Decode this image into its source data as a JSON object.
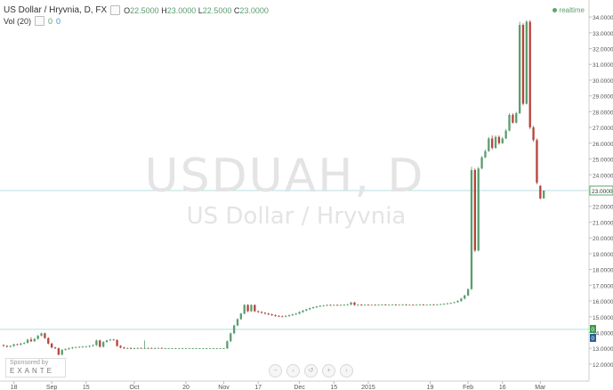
{
  "legend": {
    "title": "US Dollar / Hryvnia, D, FX",
    "box_icon": "square",
    "o_label": "O",
    "o": "22.5000",
    "h_label": "H",
    "h": "23.0000",
    "l_label": "L",
    "l": "22.5000",
    "c_label": "C",
    "c": "23.0000"
  },
  "volume": {
    "label": "Vol (20)",
    "v0": "0",
    "v1": "0"
  },
  "status": {
    "label": "realtime"
  },
  "watermark": {
    "symbol": "USDUAH, D",
    "name": "US Dollar / Hryvnia"
  },
  "sponsor": {
    "label": "Sponsored by",
    "brand": "EXANTE"
  },
  "nav": {
    "zoom_out": "−",
    "scroll_left": "‹",
    "reset": "↺",
    "zoom_in": "+",
    "scroll_right": "›"
  },
  "colors": {
    "up": "#5a9e6f",
    "down": "#b5453b",
    "line": "#b7dde0",
    "last_price": "#5aa86a"
  },
  "chart_data": {
    "type": "candlestick",
    "y_ticks": [
      "34.0000",
      "33.0000",
      "32.0000",
      "31.0000",
      "30.0000",
      "29.0000",
      "28.0000",
      "27.0000",
      "26.0000",
      "25.0000",
      "24.0000",
      "22.0000",
      "21.0000",
      "20.0000",
      "19.0000",
      "18.0000",
      "17.0000",
      "16.0000",
      "15.0000",
      "14.0000",
      "13.0000",
      "12.0000"
    ],
    "ylim": [
      11.6,
      34.4
    ],
    "last_price_label": "23.0000",
    "volume_labels": [
      "0",
      "0"
    ],
    "reference_line": 14.2,
    "x_ticks": [
      {
        "label": "18",
        "x": 3
      },
      {
        "label": "Sep",
        "x": 14
      },
      {
        "label": "15",
        "x": 24
      },
      {
        "label": "Oct",
        "x": 38
      },
      {
        "label": "20",
        "x": 53
      },
      {
        "label": "Nov",
        "x": 64
      },
      {
        "label": "17",
        "x": 74
      },
      {
        "label": "Dec",
        "x": 86
      },
      {
        "label": "15",
        "x": 96
      },
      {
        "label": "2015",
        "x": 106
      },
      {
        "label": "19",
        "x": 124
      },
      {
        "label": "Feb",
        "x": 135
      },
      {
        "label": "16",
        "x": 145
      },
      {
        "label": "Mar",
        "x": 156
      }
    ],
    "x_range": [
      0,
      166
    ],
    "candles": [
      {
        "x": 0,
        "o": 13.2,
        "h": 13.25,
        "l": 13.1,
        "c": 13.15
      },
      {
        "x": 1,
        "o": 13.15,
        "h": 13.2,
        "l": 13.05,
        "c": 13.1
      },
      {
        "x": 2,
        "o": 13.1,
        "h": 13.2,
        "l": 13.05,
        "c": 13.15
      },
      {
        "x": 3,
        "o": 13.15,
        "h": 13.3,
        "l": 13.1,
        "c": 13.25
      },
      {
        "x": 4,
        "o": 13.25,
        "h": 13.3,
        "l": 13.2,
        "c": 13.22
      },
      {
        "x": 5,
        "o": 13.22,
        "h": 13.35,
        "l": 13.2,
        "c": 13.3
      },
      {
        "x": 6,
        "o": 13.3,
        "h": 13.4,
        "l": 13.25,
        "c": 13.35
      },
      {
        "x": 7,
        "o": 13.35,
        "h": 13.6,
        "l": 13.3,
        "c": 13.55
      },
      {
        "x": 8,
        "o": 13.55,
        "h": 13.7,
        "l": 13.4,
        "c": 13.45
      },
      {
        "x": 9,
        "o": 13.45,
        "h": 13.65,
        "l": 13.4,
        "c": 13.6
      },
      {
        "x": 10,
        "o": 13.6,
        "h": 13.85,
        "l": 13.55,
        "c": 13.8
      },
      {
        "x": 11,
        "o": 13.8,
        "h": 14.0,
        "l": 13.75,
        "c": 13.95
      },
      {
        "x": 12,
        "o": 13.95,
        "h": 14.0,
        "l": 13.6,
        "c": 13.65
      },
      {
        "x": 13,
        "o": 13.65,
        "h": 13.7,
        "l": 13.25,
        "c": 13.3
      },
      {
        "x": 14,
        "o": 13.3,
        "h": 13.35,
        "l": 13.0,
        "c": 13.05
      },
      {
        "x": 15,
        "o": 13.05,
        "h": 13.1,
        "l": 12.95,
        "c": 13.0
      },
      {
        "x": 16,
        "o": 13.0,
        "h": 13.05,
        "l": 12.55,
        "c": 12.6
      },
      {
        "x": 17,
        "o": 12.6,
        "h": 12.95,
        "l": 12.55,
        "c": 12.9
      },
      {
        "x": 18,
        "o": 12.9,
        "h": 13.0,
        "l": 12.85,
        "c": 12.95
      },
      {
        "x": 19,
        "o": 12.95,
        "h": 13.05,
        "l": 12.9,
        "c": 13.0
      },
      {
        "x": 20,
        "o": 13.0,
        "h": 13.1,
        "l": 12.95,
        "c": 13.05
      },
      {
        "x": 21,
        "o": 13.05,
        "h": 13.1,
        "l": 13.0,
        "c": 13.08
      },
      {
        "x": 22,
        "o": 13.08,
        "h": 13.12,
        "l": 13.02,
        "c": 13.1
      },
      {
        "x": 23,
        "o": 13.1,
        "h": 13.15,
        "l": 13.05,
        "c": 13.1
      },
      {
        "x": 24,
        "o": 13.1,
        "h": 13.15,
        "l": 13.05,
        "c": 13.12
      },
      {
        "x": 25,
        "o": 13.12,
        "h": 13.2,
        "l": 13.05,
        "c": 13.15
      },
      {
        "x": 26,
        "o": 13.15,
        "h": 13.25,
        "l": 13.1,
        "c": 13.2
      },
      {
        "x": 27,
        "o": 13.2,
        "h": 13.55,
        "l": 13.15,
        "c": 13.5
      },
      {
        "x": 28,
        "o": 13.5,
        "h": 13.55,
        "l": 13.05,
        "c": 13.1
      },
      {
        "x": 29,
        "o": 13.1,
        "h": 13.45,
        "l": 13.05,
        "c": 13.4
      },
      {
        "x": 30,
        "o": 13.4,
        "h": 13.55,
        "l": 13.35,
        "c": 13.5
      },
      {
        "x": 31,
        "o": 13.5,
        "h": 13.6,
        "l": 13.45,
        "c": 13.55
      },
      {
        "x": 32,
        "o": 13.55,
        "h": 13.6,
        "l": 13.5,
        "c": 13.52
      },
      {
        "x": 33,
        "o": 13.52,
        "h": 13.58,
        "l": 13.1,
        "c": 13.15
      },
      {
        "x": 34,
        "o": 13.15,
        "h": 13.2,
        "l": 13.0,
        "c": 13.05
      },
      {
        "x": 35,
        "o": 13.05,
        "h": 13.1,
        "l": 12.95,
        "c": 13.0
      },
      {
        "x": 36,
        "o": 13.0,
        "h": 13.05,
        "l": 12.95,
        "c": 13.02
      },
      {
        "x": 37,
        "o": 13.02,
        "h": 13.05,
        "l": 12.95,
        "c": 13.0
      },
      {
        "x": 38,
        "o": 13.0,
        "h": 13.05,
        "l": 12.95,
        "c": 13.0
      },
      {
        "x": 39,
        "o": 13.0,
        "h": 13.05,
        "l": 12.95,
        "c": 13.02
      },
      {
        "x": 40,
        "o": 13.02,
        "h": 13.05,
        "l": 12.98,
        "c": 13.0
      },
      {
        "x": 41,
        "o": 13.0,
        "h": 13.5,
        "l": 12.95,
        "c": 13.0
      },
      {
        "x": 42,
        "o": 13.0,
        "h": 13.05,
        "l": 12.95,
        "c": 13.02
      },
      {
        "x": 43,
        "o": 13.02,
        "h": 13.05,
        "l": 12.98,
        "c": 13.0
      },
      {
        "x": 44,
        "o": 13.0,
        "h": 13.05,
        "l": 12.95,
        "c": 13.0
      },
      {
        "x": 45,
        "o": 13.0,
        "h": 13.05,
        "l": 12.98,
        "c": 13.02
      },
      {
        "x": 46,
        "o": 13.02,
        "h": 13.05,
        "l": 12.98,
        "c": 13.0
      },
      {
        "x": 47,
        "o": 13.0,
        "h": 13.02,
        "l": 12.98,
        "c": 13.0
      },
      {
        "x": 48,
        "o": 13.0,
        "h": 13.02,
        "l": 12.98,
        "c": 13.0
      },
      {
        "x": 49,
        "o": 13.0,
        "h": 13.02,
        "l": 12.98,
        "c": 13.0
      },
      {
        "x": 50,
        "o": 13.0,
        "h": 13.02,
        "l": 12.98,
        "c": 13.0
      },
      {
        "x": 51,
        "o": 13.0,
        "h": 13.02,
        "l": 12.98,
        "c": 13.0
      },
      {
        "x": 52,
        "o": 13.0,
        "h": 13.02,
        "l": 12.98,
        "c": 13.0
      },
      {
        "x": 53,
        "o": 13.0,
        "h": 13.02,
        "l": 12.98,
        "c": 13.0
      },
      {
        "x": 54,
        "o": 13.0,
        "h": 13.02,
        "l": 12.98,
        "c": 13.0
      },
      {
        "x": 55,
        "o": 13.0,
        "h": 13.02,
        "l": 12.98,
        "c": 13.0
      },
      {
        "x": 56,
        "o": 13.0,
        "h": 13.02,
        "l": 12.98,
        "c": 13.0
      },
      {
        "x": 57,
        "o": 13.0,
        "h": 13.02,
        "l": 12.98,
        "c": 13.0
      },
      {
        "x": 58,
        "o": 13.0,
        "h": 13.02,
        "l": 12.98,
        "c": 13.0
      },
      {
        "x": 59,
        "o": 13.0,
        "h": 13.02,
        "l": 12.98,
        "c": 13.0
      },
      {
        "x": 60,
        "o": 13.0,
        "h": 13.02,
        "l": 12.98,
        "c": 13.0
      },
      {
        "x": 61,
        "o": 13.0,
        "h": 13.02,
        "l": 12.98,
        "c": 13.0
      },
      {
        "x": 62,
        "o": 13.0,
        "h": 13.02,
        "l": 12.98,
        "c": 13.0
      },
      {
        "x": 63,
        "o": 13.0,
        "h": 13.02,
        "l": 12.98,
        "c": 13.0
      },
      {
        "x": 64,
        "o": 13.0,
        "h": 13.02,
        "l": 12.98,
        "c": 13.0
      },
      {
        "x": 65,
        "o": 13.0,
        "h": 13.5,
        "l": 12.95,
        "c": 13.45
      },
      {
        "x": 66,
        "o": 13.45,
        "h": 14.0,
        "l": 13.4,
        "c": 13.95
      },
      {
        "x": 67,
        "o": 13.95,
        "h": 14.5,
        "l": 13.9,
        "c": 14.45
      },
      {
        "x": 68,
        "o": 14.45,
        "h": 14.9,
        "l": 14.4,
        "c": 14.85
      },
      {
        "x": 69,
        "o": 14.85,
        "h": 15.25,
        "l": 14.8,
        "c": 15.2
      },
      {
        "x": 70,
        "o": 15.2,
        "h": 15.8,
        "l": 15.15,
        "c": 15.75
      },
      {
        "x": 71,
        "o": 15.75,
        "h": 15.8,
        "l": 15.3,
        "c": 15.35
      },
      {
        "x": 72,
        "o": 15.35,
        "h": 15.8,
        "l": 15.3,
        "c": 15.75
      },
      {
        "x": 73,
        "o": 15.75,
        "h": 15.78,
        "l": 15.3,
        "c": 15.35
      },
      {
        "x": 74,
        "o": 15.35,
        "h": 15.4,
        "l": 15.25,
        "c": 15.3
      },
      {
        "x": 75,
        "o": 15.3,
        "h": 15.35,
        "l": 15.2,
        "c": 15.25
      },
      {
        "x": 76,
        "o": 15.25,
        "h": 15.3,
        "l": 15.15,
        "c": 15.2
      },
      {
        "x": 77,
        "o": 15.2,
        "h": 15.25,
        "l": 15.1,
        "c": 15.15
      },
      {
        "x": 78,
        "o": 15.15,
        "h": 15.2,
        "l": 15.05,
        "c": 15.1
      },
      {
        "x": 79,
        "o": 15.1,
        "h": 15.15,
        "l": 15.0,
        "c": 15.05
      },
      {
        "x": 80,
        "o": 15.05,
        "h": 15.1,
        "l": 15.0,
        "c": 15.02
      },
      {
        "x": 81,
        "o": 15.02,
        "h": 15.08,
        "l": 14.98,
        "c": 15.0
      },
      {
        "x": 82,
        "o": 15.0,
        "h": 15.1,
        "l": 14.98,
        "c": 15.05
      },
      {
        "x": 83,
        "o": 15.05,
        "h": 15.15,
        "l": 15.0,
        "c": 15.1
      },
      {
        "x": 84,
        "o": 15.1,
        "h": 15.2,
        "l": 15.05,
        "c": 15.15
      },
      {
        "x": 85,
        "o": 15.15,
        "h": 15.25,
        "l": 15.1,
        "c": 15.2
      },
      {
        "x": 86,
        "o": 15.2,
        "h": 15.35,
        "l": 15.15,
        "c": 15.3
      },
      {
        "x": 87,
        "o": 15.3,
        "h": 15.42,
        "l": 15.25,
        "c": 15.4
      },
      {
        "x": 88,
        "o": 15.4,
        "h": 15.5,
        "l": 15.35,
        "c": 15.48
      },
      {
        "x": 89,
        "o": 15.48,
        "h": 15.58,
        "l": 15.42,
        "c": 15.55
      },
      {
        "x": 90,
        "o": 15.55,
        "h": 15.65,
        "l": 15.5,
        "c": 15.6
      },
      {
        "x": 91,
        "o": 15.6,
        "h": 15.7,
        "l": 15.55,
        "c": 15.65
      },
      {
        "x": 92,
        "o": 15.65,
        "h": 15.72,
        "l": 15.6,
        "c": 15.7
      },
      {
        "x": 93,
        "o": 15.7,
        "h": 15.75,
        "l": 15.65,
        "c": 15.72
      },
      {
        "x": 94,
        "o": 15.72,
        "h": 15.78,
        "l": 15.68,
        "c": 15.75
      },
      {
        "x": 95,
        "o": 15.75,
        "h": 15.78,
        "l": 15.7,
        "c": 15.74
      },
      {
        "x": 96,
        "o": 15.74,
        "h": 15.78,
        "l": 15.7,
        "c": 15.75
      },
      {
        "x": 97,
        "o": 15.75,
        "h": 15.78,
        "l": 15.7,
        "c": 15.74
      },
      {
        "x": 98,
        "o": 15.74,
        "h": 15.78,
        "l": 15.7,
        "c": 15.75
      },
      {
        "x": 99,
        "o": 15.75,
        "h": 15.8,
        "l": 15.7,
        "c": 15.76
      },
      {
        "x": 100,
        "o": 15.76,
        "h": 15.82,
        "l": 15.72,
        "c": 15.78
      },
      {
        "x": 101,
        "o": 15.78,
        "h": 15.95,
        "l": 15.72,
        "c": 15.9
      },
      {
        "x": 102,
        "o": 15.9,
        "h": 15.95,
        "l": 15.7,
        "c": 15.75
      },
      {
        "x": 103,
        "o": 15.75,
        "h": 15.8,
        "l": 15.7,
        "c": 15.76
      },
      {
        "x": 104,
        "o": 15.76,
        "h": 15.8,
        "l": 15.7,
        "c": 15.75
      },
      {
        "x": 105,
        "o": 15.75,
        "h": 15.78,
        "l": 15.72,
        "c": 15.76
      },
      {
        "x": 106,
        "o": 15.76,
        "h": 15.78,
        "l": 15.72,
        "c": 15.75
      },
      {
        "x": 107,
        "o": 15.75,
        "h": 15.78,
        "l": 15.72,
        "c": 15.76
      },
      {
        "x": 108,
        "o": 15.76,
        "h": 15.78,
        "l": 15.72,
        "c": 15.75
      },
      {
        "x": 109,
        "o": 15.75,
        "h": 15.78,
        "l": 15.72,
        "c": 15.76
      },
      {
        "x": 110,
        "o": 15.76,
        "h": 15.8,
        "l": 15.72,
        "c": 15.78
      },
      {
        "x": 111,
        "o": 15.78,
        "h": 15.8,
        "l": 15.72,
        "c": 15.75
      },
      {
        "x": 112,
        "o": 15.75,
        "h": 15.78,
        "l": 15.72,
        "c": 15.76
      },
      {
        "x": 113,
        "o": 15.76,
        "h": 15.8,
        "l": 15.72,
        "c": 15.78
      },
      {
        "x": 114,
        "o": 15.78,
        "h": 15.8,
        "l": 15.72,
        "c": 15.75
      },
      {
        "x": 115,
        "o": 15.75,
        "h": 15.78,
        "l": 15.72,
        "c": 15.76
      },
      {
        "x": 116,
        "o": 15.76,
        "h": 15.8,
        "l": 15.72,
        "c": 15.78
      },
      {
        "x": 117,
        "o": 15.78,
        "h": 15.8,
        "l": 15.72,
        "c": 15.75
      },
      {
        "x": 118,
        "o": 15.75,
        "h": 15.78,
        "l": 15.72,
        "c": 15.76
      },
      {
        "x": 119,
        "o": 15.76,
        "h": 15.78,
        "l": 15.72,
        "c": 15.75
      },
      {
        "x": 120,
        "o": 15.75,
        "h": 15.78,
        "l": 15.72,
        "c": 15.76
      },
      {
        "x": 121,
        "o": 15.76,
        "h": 15.8,
        "l": 15.72,
        "c": 15.78
      },
      {
        "x": 122,
        "o": 15.78,
        "h": 15.8,
        "l": 15.72,
        "c": 15.75
      },
      {
        "x": 123,
        "o": 15.75,
        "h": 15.78,
        "l": 15.72,
        "c": 15.76
      },
      {
        "x": 124,
        "o": 15.76,
        "h": 15.8,
        "l": 15.72,
        "c": 15.78
      },
      {
        "x": 125,
        "o": 15.78,
        "h": 15.8,
        "l": 15.72,
        "c": 15.76
      },
      {
        "x": 126,
        "o": 15.76,
        "h": 15.8,
        "l": 15.72,
        "c": 15.78
      },
      {
        "x": 127,
        "o": 15.78,
        "h": 15.82,
        "l": 15.74,
        "c": 15.8
      },
      {
        "x": 128,
        "o": 15.8,
        "h": 15.85,
        "l": 15.75,
        "c": 15.82
      },
      {
        "x": 129,
        "o": 15.82,
        "h": 15.88,
        "l": 15.78,
        "c": 15.85
      },
      {
        "x": 130,
        "o": 15.85,
        "h": 15.9,
        "l": 15.8,
        "c": 15.88
      },
      {
        "x": 131,
        "o": 15.88,
        "h": 15.95,
        "l": 15.85,
        "c": 15.92
      },
      {
        "x": 132,
        "o": 15.92,
        "h": 16.05,
        "l": 15.9,
        "c": 16.0
      },
      {
        "x": 133,
        "o": 16.0,
        "h": 16.2,
        "l": 15.95,
        "c": 16.15
      },
      {
        "x": 134,
        "o": 16.15,
        "h": 16.4,
        "l": 16.1,
        "c": 16.35
      },
      {
        "x": 135,
        "o": 16.35,
        "h": 16.8,
        "l": 16.3,
        "c": 16.75
      },
      {
        "x": 136,
        "o": 16.75,
        "h": 24.5,
        "l": 16.7,
        "c": 24.3
      },
      {
        "x": 137,
        "o": 24.3,
        "h": 24.4,
        "l": 19.1,
        "c": 19.2
      },
      {
        "x": 138,
        "o": 19.2,
        "h": 24.5,
        "l": 19.15,
        "c": 24.4
      },
      {
        "x": 139,
        "o": 24.4,
        "h": 25.2,
        "l": 24.35,
        "c": 25.1
      },
      {
        "x": 140,
        "o": 25.1,
        "h": 25.6,
        "l": 25.05,
        "c": 25.5
      },
      {
        "x": 141,
        "o": 25.5,
        "h": 26.4,
        "l": 25.45,
        "c": 26.3
      },
      {
        "x": 142,
        "o": 26.3,
        "h": 26.5,
        "l": 25.6,
        "c": 25.7
      },
      {
        "x": 143,
        "o": 25.7,
        "h": 26.5,
        "l": 25.65,
        "c": 26.4
      },
      {
        "x": 144,
        "o": 26.4,
        "h": 26.5,
        "l": 25.9,
        "c": 26.0
      },
      {
        "x": 145,
        "o": 26.0,
        "h": 26.4,
        "l": 25.95,
        "c": 26.3
      },
      {
        "x": 146,
        "o": 26.3,
        "h": 26.9,
        "l": 26.25,
        "c": 26.8
      },
      {
        "x": 147,
        "o": 26.8,
        "h": 27.9,
        "l": 26.75,
        "c": 27.8
      },
      {
        "x": 148,
        "o": 27.8,
        "h": 27.9,
        "l": 27.25,
        "c": 27.3
      },
      {
        "x": 149,
        "o": 27.3,
        "h": 28.0,
        "l": 27.25,
        "c": 27.9
      },
      {
        "x": 150,
        "o": 27.9,
        "h": 33.7,
        "l": 27.85,
        "c": 33.5
      },
      {
        "x": 151,
        "o": 33.5,
        "h": 33.6,
        "l": 28.4,
        "c": 28.5
      },
      {
        "x": 152,
        "o": 28.5,
        "h": 33.8,
        "l": 28.45,
        "c": 33.7
      },
      {
        "x": 153,
        "o": 33.7,
        "h": 33.8,
        "l": 26.9,
        "c": 27.0
      },
      {
        "x": 154,
        "o": 27.0,
        "h": 27.1,
        "l": 26.1,
        "c": 26.2
      },
      {
        "x": 155,
        "o": 26.2,
        "h": 26.3,
        "l": 23.4,
        "c": 23.5
      },
      {
        "x": 156,
        "o": 23.3,
        "h": 23.35,
        "l": 22.45,
        "c": 22.5
      },
      {
        "x": 157,
        "o": 22.5,
        "h": 23.0,
        "l": 22.5,
        "c": 23.0
      }
    ]
  }
}
